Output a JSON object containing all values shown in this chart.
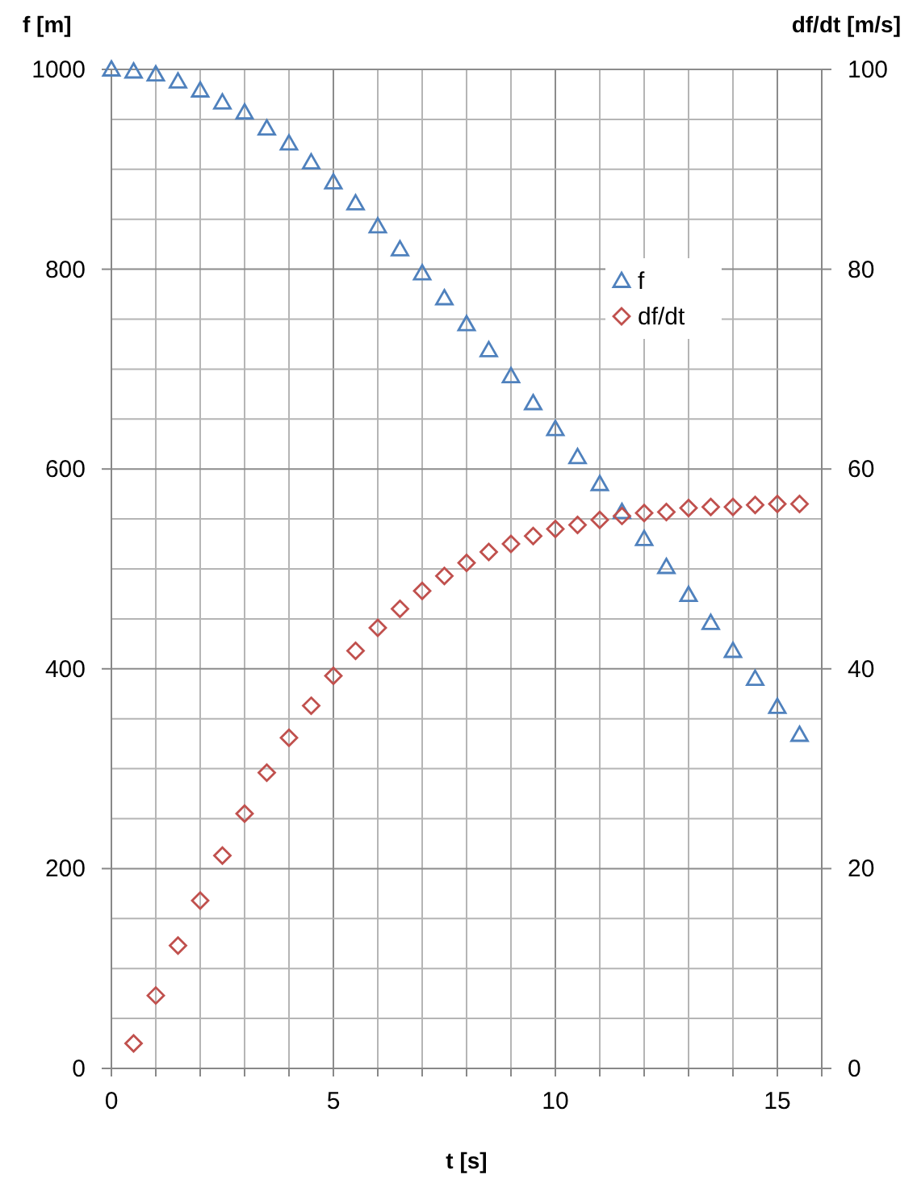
{
  "chart_data": {
    "type": "scatter",
    "xlabel": "t [s]",
    "ylabel": "f [m]",
    "y2label": "df/dt [m/s]",
    "xlim": [
      0,
      16
    ],
    "xticks": [
      0,
      {
        "value": 1,
        "label": null
      },
      {
        "value": 2,
        "label": null
      },
      {
        "value": 3,
        "label": null
      },
      {
        "value": 4,
        "label": null
      },
      5,
      {
        "value": 6,
        "label": null
      },
      {
        "value": 7,
        "label": null
      },
      {
        "value": 8,
        "label": null
      },
      {
        "value": 9,
        "label": null
      },
      10,
      {
        "value": 11,
        "label": null
      },
      {
        "value": 12,
        "label": null
      },
      {
        "value": 13,
        "label": null
      },
      {
        "value": 14,
        "label": null
      },
      15,
      {
        "value": 16,
        "label": null
      }
    ],
    "ylim": [
      0,
      1000
    ],
    "yticks": [
      0,
      {
        "value": 50,
        "label": null
      },
      {
        "value": 100,
        "label": null
      },
      {
        "value": 150,
        "label": null
      },
      200,
      {
        "value": 250,
        "label": null
      },
      {
        "value": 300,
        "label": null
      },
      {
        "value": 350,
        "label": null
      },
      400,
      {
        "value": 450,
        "label": null
      },
      {
        "value": 500,
        "label": null
      },
      {
        "value": 550,
        "label": null
      },
      600,
      {
        "value": 650,
        "label": null
      },
      {
        "value": 700,
        "label": null
      },
      {
        "value": 750,
        "label": null
      },
      800,
      {
        "value": 850,
        "label": null
      },
      {
        "value": 900,
        "label": null
      },
      {
        "value": 950,
        "label": null
      },
      1000
    ],
    "y2lim": [
      0,
      100
    ],
    "y2ticks": [
      0,
      20,
      40,
      60,
      80,
      100
    ],
    "grid": true,
    "legend": "right",
    "series": [
      {
        "name": "f",
        "color": "#4f81bd",
        "marker": "triangle",
        "x": [
          0,
          0.5,
          1,
          1.5,
          2,
          2.5,
          3,
          3.5,
          4,
          4.5,
          5,
          5.5,
          6,
          6.5,
          7,
          7.5,
          8,
          8.5,
          9,
          9.5,
          10,
          10.5,
          11,
          11.5,
          12,
          12.5,
          13,
          13.5,
          14,
          14.5,
          15,
          15.5
        ],
        "values": [
          1000,
          998,
          995,
          988,
          979,
          967,
          957,
          941,
          926,
          907,
          887,
          866,
          843,
          820,
          796,
          771,
          745,
          719,
          693,
          666,
          640,
          612,
          585,
          557,
          530,
          502,
          474,
          446,
          418,
          390,
          362,
          334
        ]
      },
      {
        "name": "df/dt",
        "color": "#c0504d",
        "marker": "diamond",
        "axis": "y2",
        "x": [
          0.5,
          1,
          1.5,
          2,
          2.5,
          3,
          3.5,
          4,
          4.5,
          5,
          5.5,
          6,
          6.5,
          7,
          7.5,
          8,
          8.5,
          9,
          9.5,
          10,
          10.5,
          11,
          11.5,
          12,
          12.5,
          13,
          13.5,
          14,
          14.5,
          15,
          15.5
        ],
        "values": [
          2.5,
          7.3,
          12.3,
          16.8,
          21.3,
          25.5,
          29.6,
          33.1,
          36.3,
          39.3,
          41.8,
          44.1,
          46.0,
          47.8,
          49.3,
          50.6,
          51.7,
          52.5,
          53.3,
          54.0,
          54.4,
          54.9,
          55.3,
          55.6,
          55.7,
          56.1,
          56.2,
          56.2,
          56.4,
          56.5,
          56.5
        ]
      }
    ]
  }
}
